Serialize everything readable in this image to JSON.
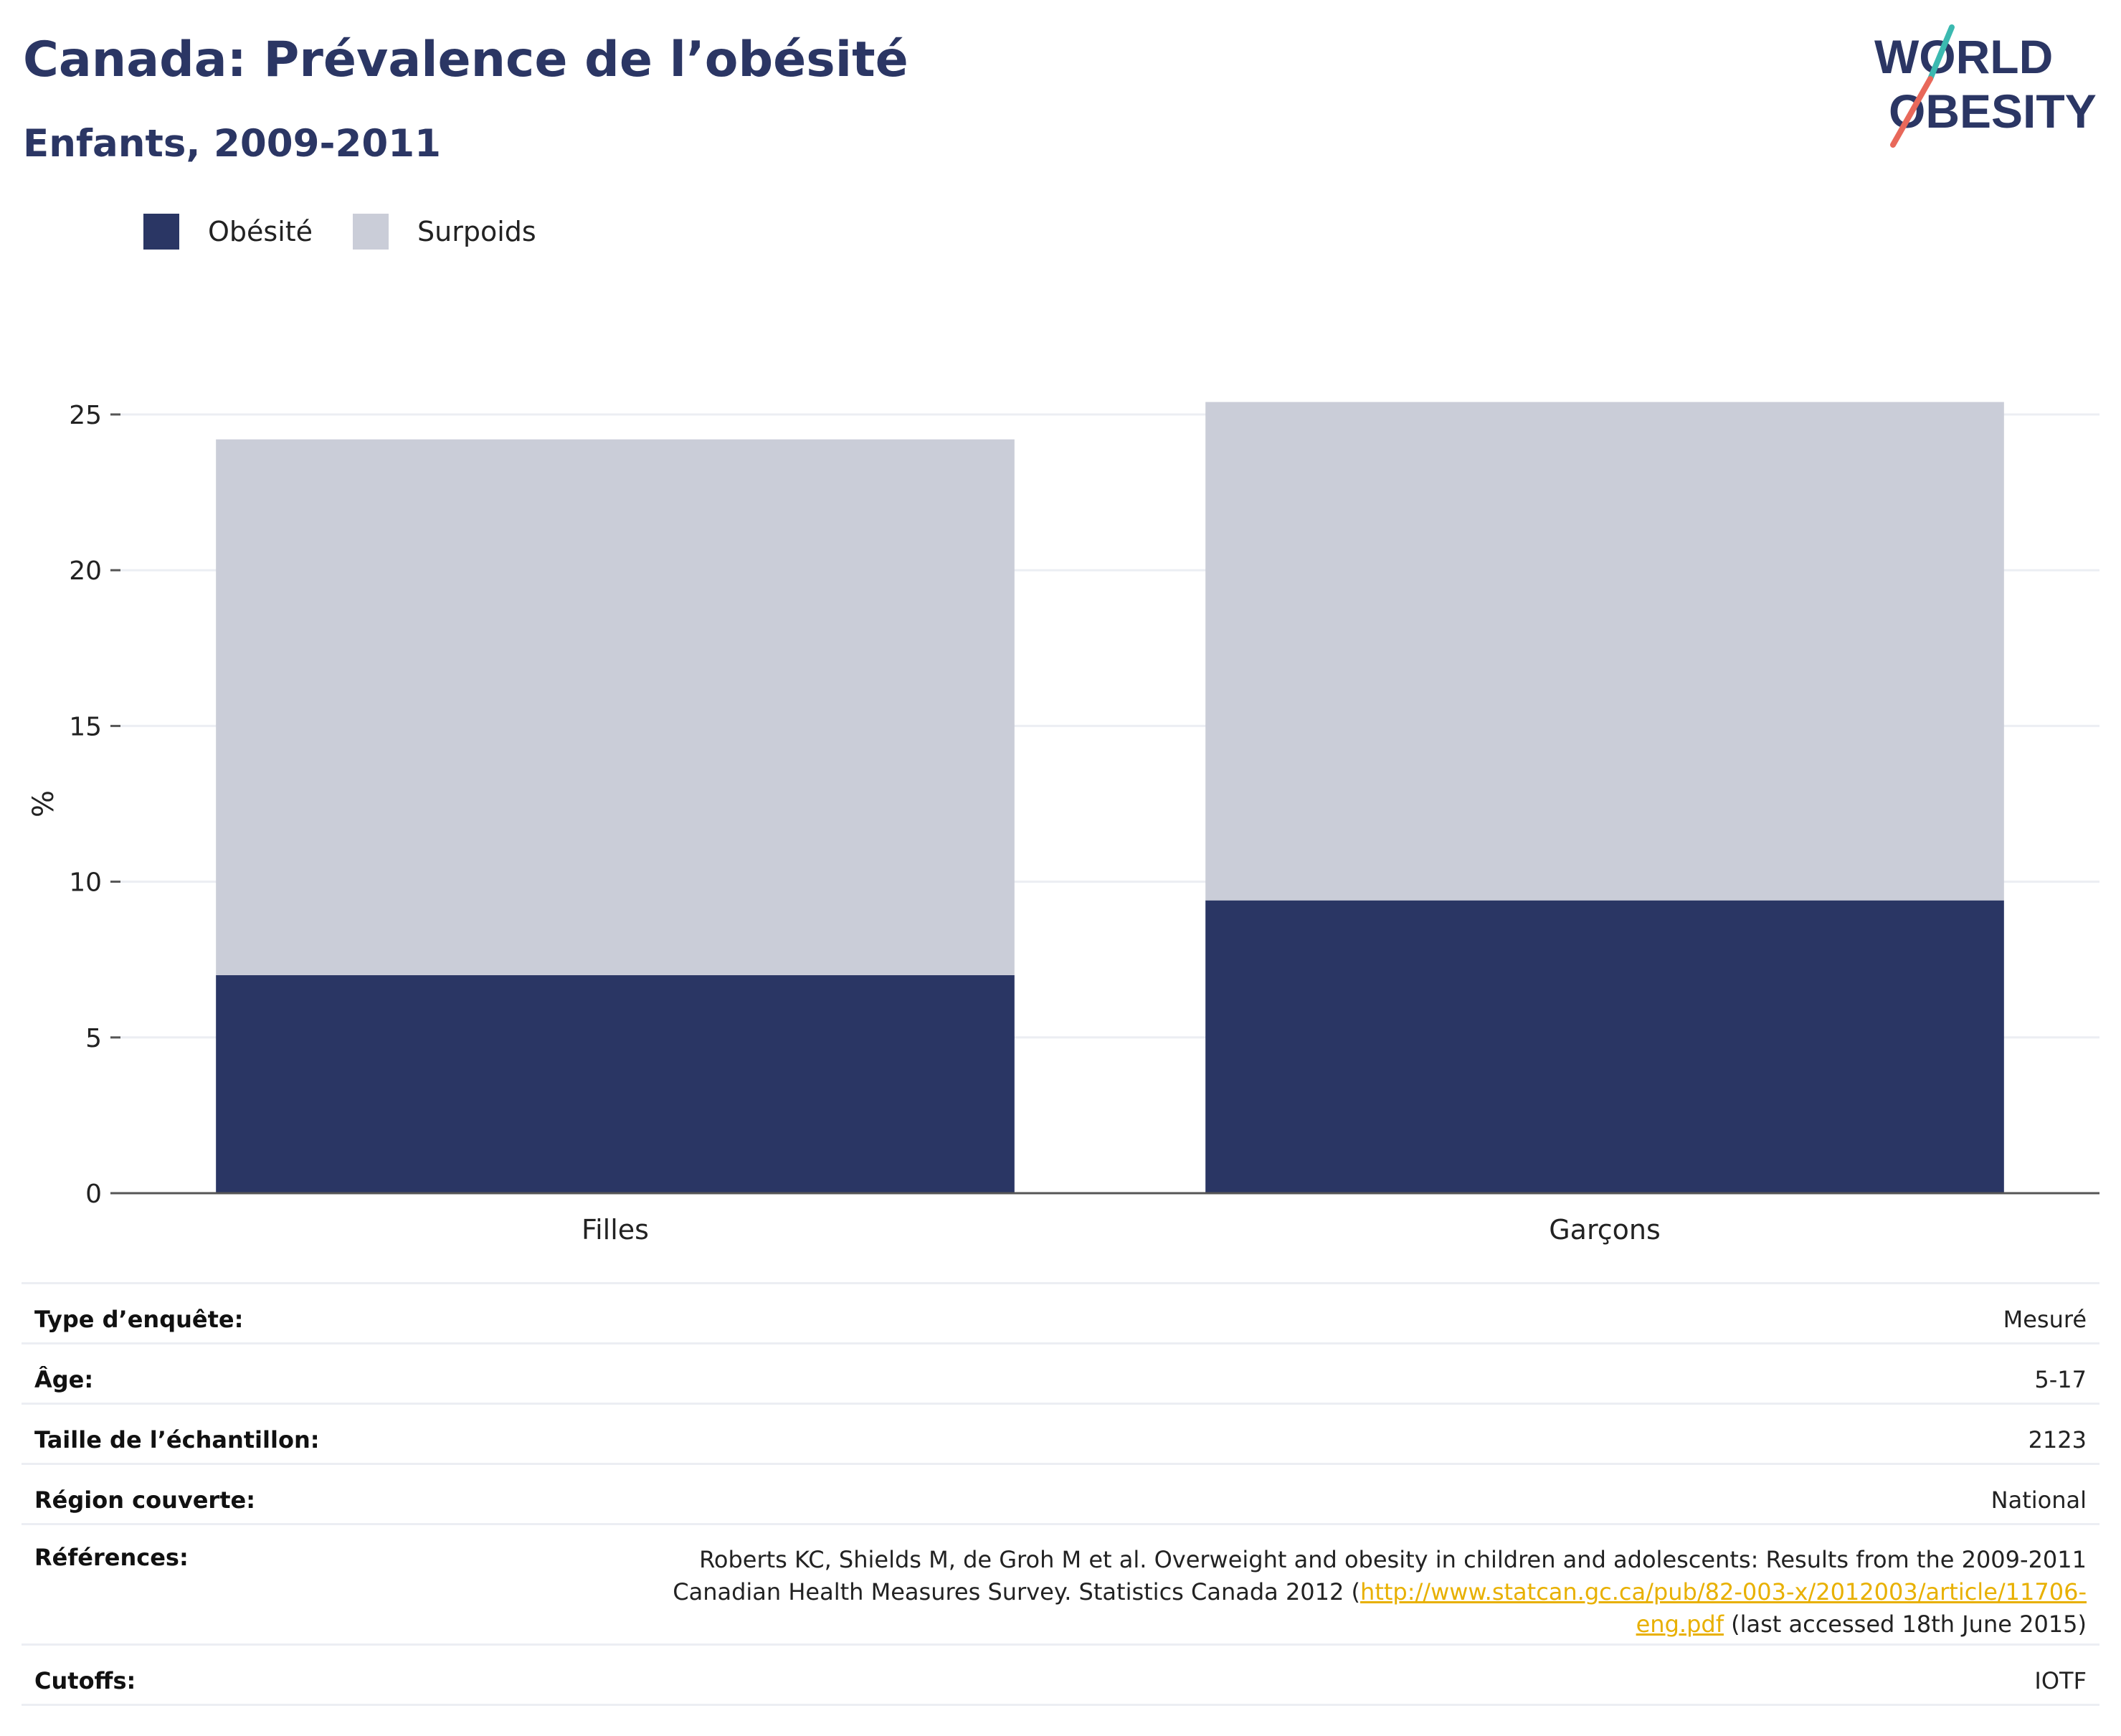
{
  "header": {
    "title": "Canada: Prévalence de l’obésité",
    "subtitle": "Enfants, 2009-2011"
  },
  "logo": {
    "line1": "WORLD",
    "line2": "OBESITY",
    "colors": {
      "text": "#2b3664",
      "slash_top": "#3bb9b0",
      "slash_bottom": "#e8685a"
    }
  },
  "colors": {
    "obesity": "#2a3664",
    "overweight": "#cacdd8",
    "axis": "#555555",
    "grid": "#eceef3"
  },
  "chart_data": {
    "type": "bar",
    "stacked": true,
    "categories": [
      "Filles",
      "Garçons"
    ],
    "series": [
      {
        "name": "Obésité",
        "values": [
          7.0,
          9.4
        ],
        "color": "#2a3664"
      },
      {
        "name": "Surpoids",
        "values": [
          17.2,
          16.0
        ],
        "color": "#cacdd8"
      }
    ],
    "title": "",
    "xlabel": "",
    "ylabel": "%",
    "ylim": [
      0,
      25
    ],
    "yticks": [
      "0",
      "5",
      "10",
      "15",
      "20",
      "25"
    ],
    "grid": true,
    "legend_position": "top-left"
  },
  "details": [
    {
      "label": "Type d’enquête:",
      "value": "Mesuré"
    },
    {
      "label": "Âge:",
      "value": "5-17"
    },
    {
      "label": "Taille de l’échantillon:",
      "value": "2123"
    },
    {
      "label": "Région couverte:",
      "value": "National"
    }
  ],
  "references": {
    "label": "Références:",
    "text_before": "Roberts KC, Shields M, de Groh M et al. Overweight and obesity in children and adolescents: Results from the 2009-2011 Canadian Health Measures Survey. Statistics Canada 2012 (",
    "link": "http://www.statcan.gc.ca/pub/82-003-x/2012003/article/11706-eng.pdf",
    "text_after": " (last accessed 18th June 2015)"
  },
  "cutoffs": {
    "label": "Cutoffs:",
    "value": "IOTF"
  }
}
